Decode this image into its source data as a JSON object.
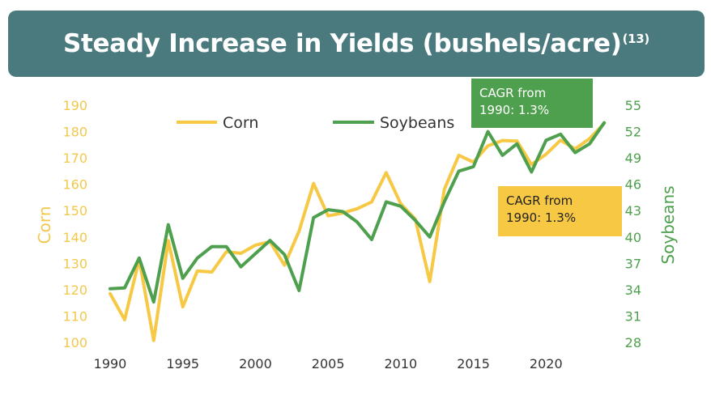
{
  "title": {
    "text": "Steady Increase in Yields (bushels/acre)",
    "footnote": "(13)"
  },
  "callouts": {
    "soybeans_line1": "CAGR from",
    "soybeans_line2": "1990: 1.3%",
    "corn_line1": "CAGR from",
    "corn_line2": "1990: 1.3%"
  },
  "colors": {
    "corn": "#f6c843",
    "soybeans": "#4ea04e",
    "banner": "#4a7a7e"
  },
  "chart_data": {
    "type": "line",
    "x": [
      1990,
      1991,
      1992,
      1993,
      1994,
      1995,
      1996,
      1997,
      1998,
      1999,
      2000,
      2001,
      2002,
      2003,
      2004,
      2005,
      2006,
      2007,
      2008,
      2009,
      2010,
      2011,
      2012,
      2013,
      2014,
      2015,
      2016,
      2017,
      2018,
      2019,
      2020,
      2021,
      2022,
      2023,
      2024
    ],
    "series": [
      {
        "name": "Corn",
        "axis": "left",
        "values": [
          118.5,
          108.6,
          131.5,
          100.7,
          138.6,
          113.5,
          127.1,
          126.7,
          134.4,
          133.8,
          136.9,
          138.2,
          129.3,
          142.2,
          160.3,
          148.0,
          149.1,
          150.7,
          153.3,
          164.4,
          152.6,
          146.8,
          123.1,
          158.1,
          171.0,
          168.4,
          174.6,
          176.6,
          176.4,
          167.5,
          171.4,
          176.7,
          173.4,
          177.3,
          183.1
        ]
      },
      {
        "name": "Soybeans",
        "axis": "right",
        "values": [
          34.1,
          34.2,
          37.6,
          32.6,
          41.4,
          35.3,
          37.6,
          38.9,
          38.9,
          36.6,
          38.1,
          39.6,
          38.0,
          33.9,
          42.2,
          43.1,
          42.9,
          41.7,
          39.7,
          44.0,
          43.5,
          41.9,
          40.0,
          44.0,
          47.5,
          48.0,
          52.0,
          49.3,
          50.6,
          47.4,
          51.0,
          51.7,
          49.6,
          50.6,
          53.0
        ]
      }
    ],
    "xticks": [
      "1990",
      "1995",
      "2000",
      "2005",
      "2010",
      "2015",
      "2020"
    ],
    "xlim": [
      1990,
      2025
    ],
    "y_left": {
      "label": "Corn",
      "ticks": [
        "100",
        "110",
        "120",
        "130",
        "140",
        "150",
        "160",
        "170",
        "180",
        "190"
      ],
      "lim": [
        100,
        190
      ]
    },
    "y_right": {
      "label": "Soybeans",
      "ticks": [
        "28",
        "31",
        "34",
        "37",
        "40",
        "43",
        "46",
        "49",
        "52",
        "55"
      ],
      "lim": [
        28,
        55
      ]
    },
    "legend": "top-left",
    "grid": false
  }
}
